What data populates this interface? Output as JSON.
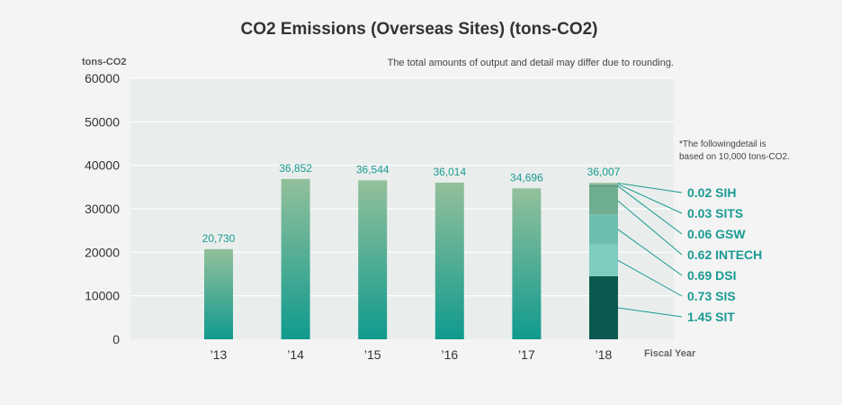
{
  "chart_data": {
    "type": "bar",
    "title": "CO2 Emissions (Overseas Sites) (tons-CO2)",
    "ylabel": "tons-CO2",
    "xlabel": "Fiscal Year",
    "note": "The total amounts of output and detail may differ due to rounding.",
    "detail_note_line1": "*The followingdetail is",
    "detail_note_line2": "based on 10,000 tons-CO2.",
    "ylim": [
      0,
      60000
    ],
    "yticks": [
      0,
      10000,
      20000,
      30000,
      40000,
      50000,
      60000
    ],
    "grid": true,
    "categories": [
      "’13",
      "’14",
      "’15",
      "’16",
      "’17",
      "’18"
    ],
    "values": [
      20730,
      36852,
      36544,
      36014,
      34696,
      36007
    ],
    "value_labels": [
      "20,730",
      "36,852",
      "36,544",
      "36,014",
      "34,696",
      "36,007"
    ],
    "breakdown_category": "’18",
    "breakdown": [
      {
        "name": "SIT",
        "value": 1.45,
        "label": "1.45 SIT",
        "color": "#0b5a4f"
      },
      {
        "name": "SIS",
        "value": 0.73,
        "label": "0.73 SIS",
        "color": "#7ecdc0"
      },
      {
        "name": "DSI",
        "value": 0.69,
        "label": "0.69 DSI",
        "color": "#6cbfae"
      },
      {
        "name": "INTECH",
        "value": 0.62,
        "label": "0.62 INTECH",
        "color": "#6fae90"
      },
      {
        "name": "GSW",
        "value": 0.06,
        "label": "0.06 GSW",
        "color": "#5e9f86"
      },
      {
        "name": "SITS",
        "value": 0.03,
        "label": "0.03 SITS",
        "color": "#8fb79c"
      },
      {
        "name": "SIH",
        "value": 0.02,
        "label": "0.02 SIH",
        "color": "#a3c7a3"
      }
    ],
    "colors": {
      "bar_top": "#93c09b",
      "bar_bottom": "#109a8e",
      "plot_bg": "#e9eeec",
      "grid": "#ffffff",
      "accent": "#1b9a93"
    }
  }
}
